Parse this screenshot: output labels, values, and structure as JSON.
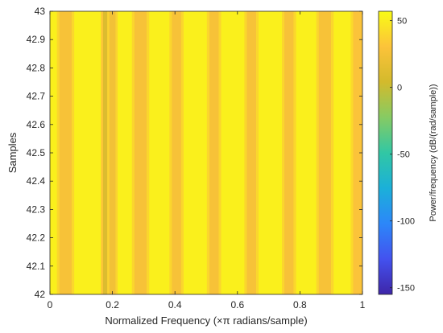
{
  "chart_data": {
    "type": "heatmap",
    "title": "",
    "xlabel": "Normalized Frequency (×π radians/sample)",
    "ylabel": "Samples",
    "colorbar_label": "Power/frequency (dB/(rad/sample))",
    "xlim": [
      0,
      1
    ],
    "ylim": [
      42,
      43
    ],
    "clim": [
      -155,
      57
    ],
    "x_ticks": [
      0,
      0.2,
      0.4,
      0.6,
      0.8,
      1
    ],
    "x_tick_labels": [
      "0",
      "0.2",
      "0.4",
      "0.6",
      "0.8",
      "1"
    ],
    "y_ticks": [
      42,
      42.1,
      42.2,
      42.3,
      42.4,
      42.5,
      42.6,
      42.7,
      42.8,
      42.9,
      43
    ],
    "y_tick_labels": [
      "42",
      "42.1",
      "42.2",
      "42.3",
      "42.4",
      "42.5",
      "42.6",
      "42.7",
      "42.8",
      "42.9",
      "43"
    ],
    "colorbar_ticks": [
      50,
      0,
      -50,
      -100,
      -150
    ],
    "colorbar_tick_labels": [
      "50",
      "0",
      "-50",
      "-100",
      "-150"
    ],
    "colormap": "parula",
    "colormap_stops": [
      "#3e26a8",
      "#4352ef",
      "#2c87f9",
      "#1bb0d9",
      "#31c7a4",
      "#86cb63",
      "#d3ba2c",
      "#fcc33a",
      "#f9fb15"
    ],
    "baseline_db": 52,
    "frequency_bands": [
      {
        "x_start": 0.03,
        "x_end": 0.07,
        "db": 27
      },
      {
        "x_start": 0.17,
        "x_end": 0.19,
        "db": 10
      },
      {
        "x_start": 0.19,
        "x_end": 0.21,
        "db": 24
      },
      {
        "x_start": 0.27,
        "x_end": 0.31,
        "db": 27
      },
      {
        "x_start": 0.39,
        "x_end": 0.42,
        "db": 27
      },
      {
        "x_start": 0.51,
        "x_end": 0.54,
        "db": 27
      },
      {
        "x_start": 0.63,
        "x_end": 0.66,
        "db": 27
      },
      {
        "x_start": 0.75,
        "x_end": 0.78,
        "db": 27
      },
      {
        "x_start": 0.86,
        "x_end": 0.9,
        "db": 27
      },
      {
        "x_start": 0.97,
        "x_end": 1.0,
        "db": 30
      }
    ]
  }
}
